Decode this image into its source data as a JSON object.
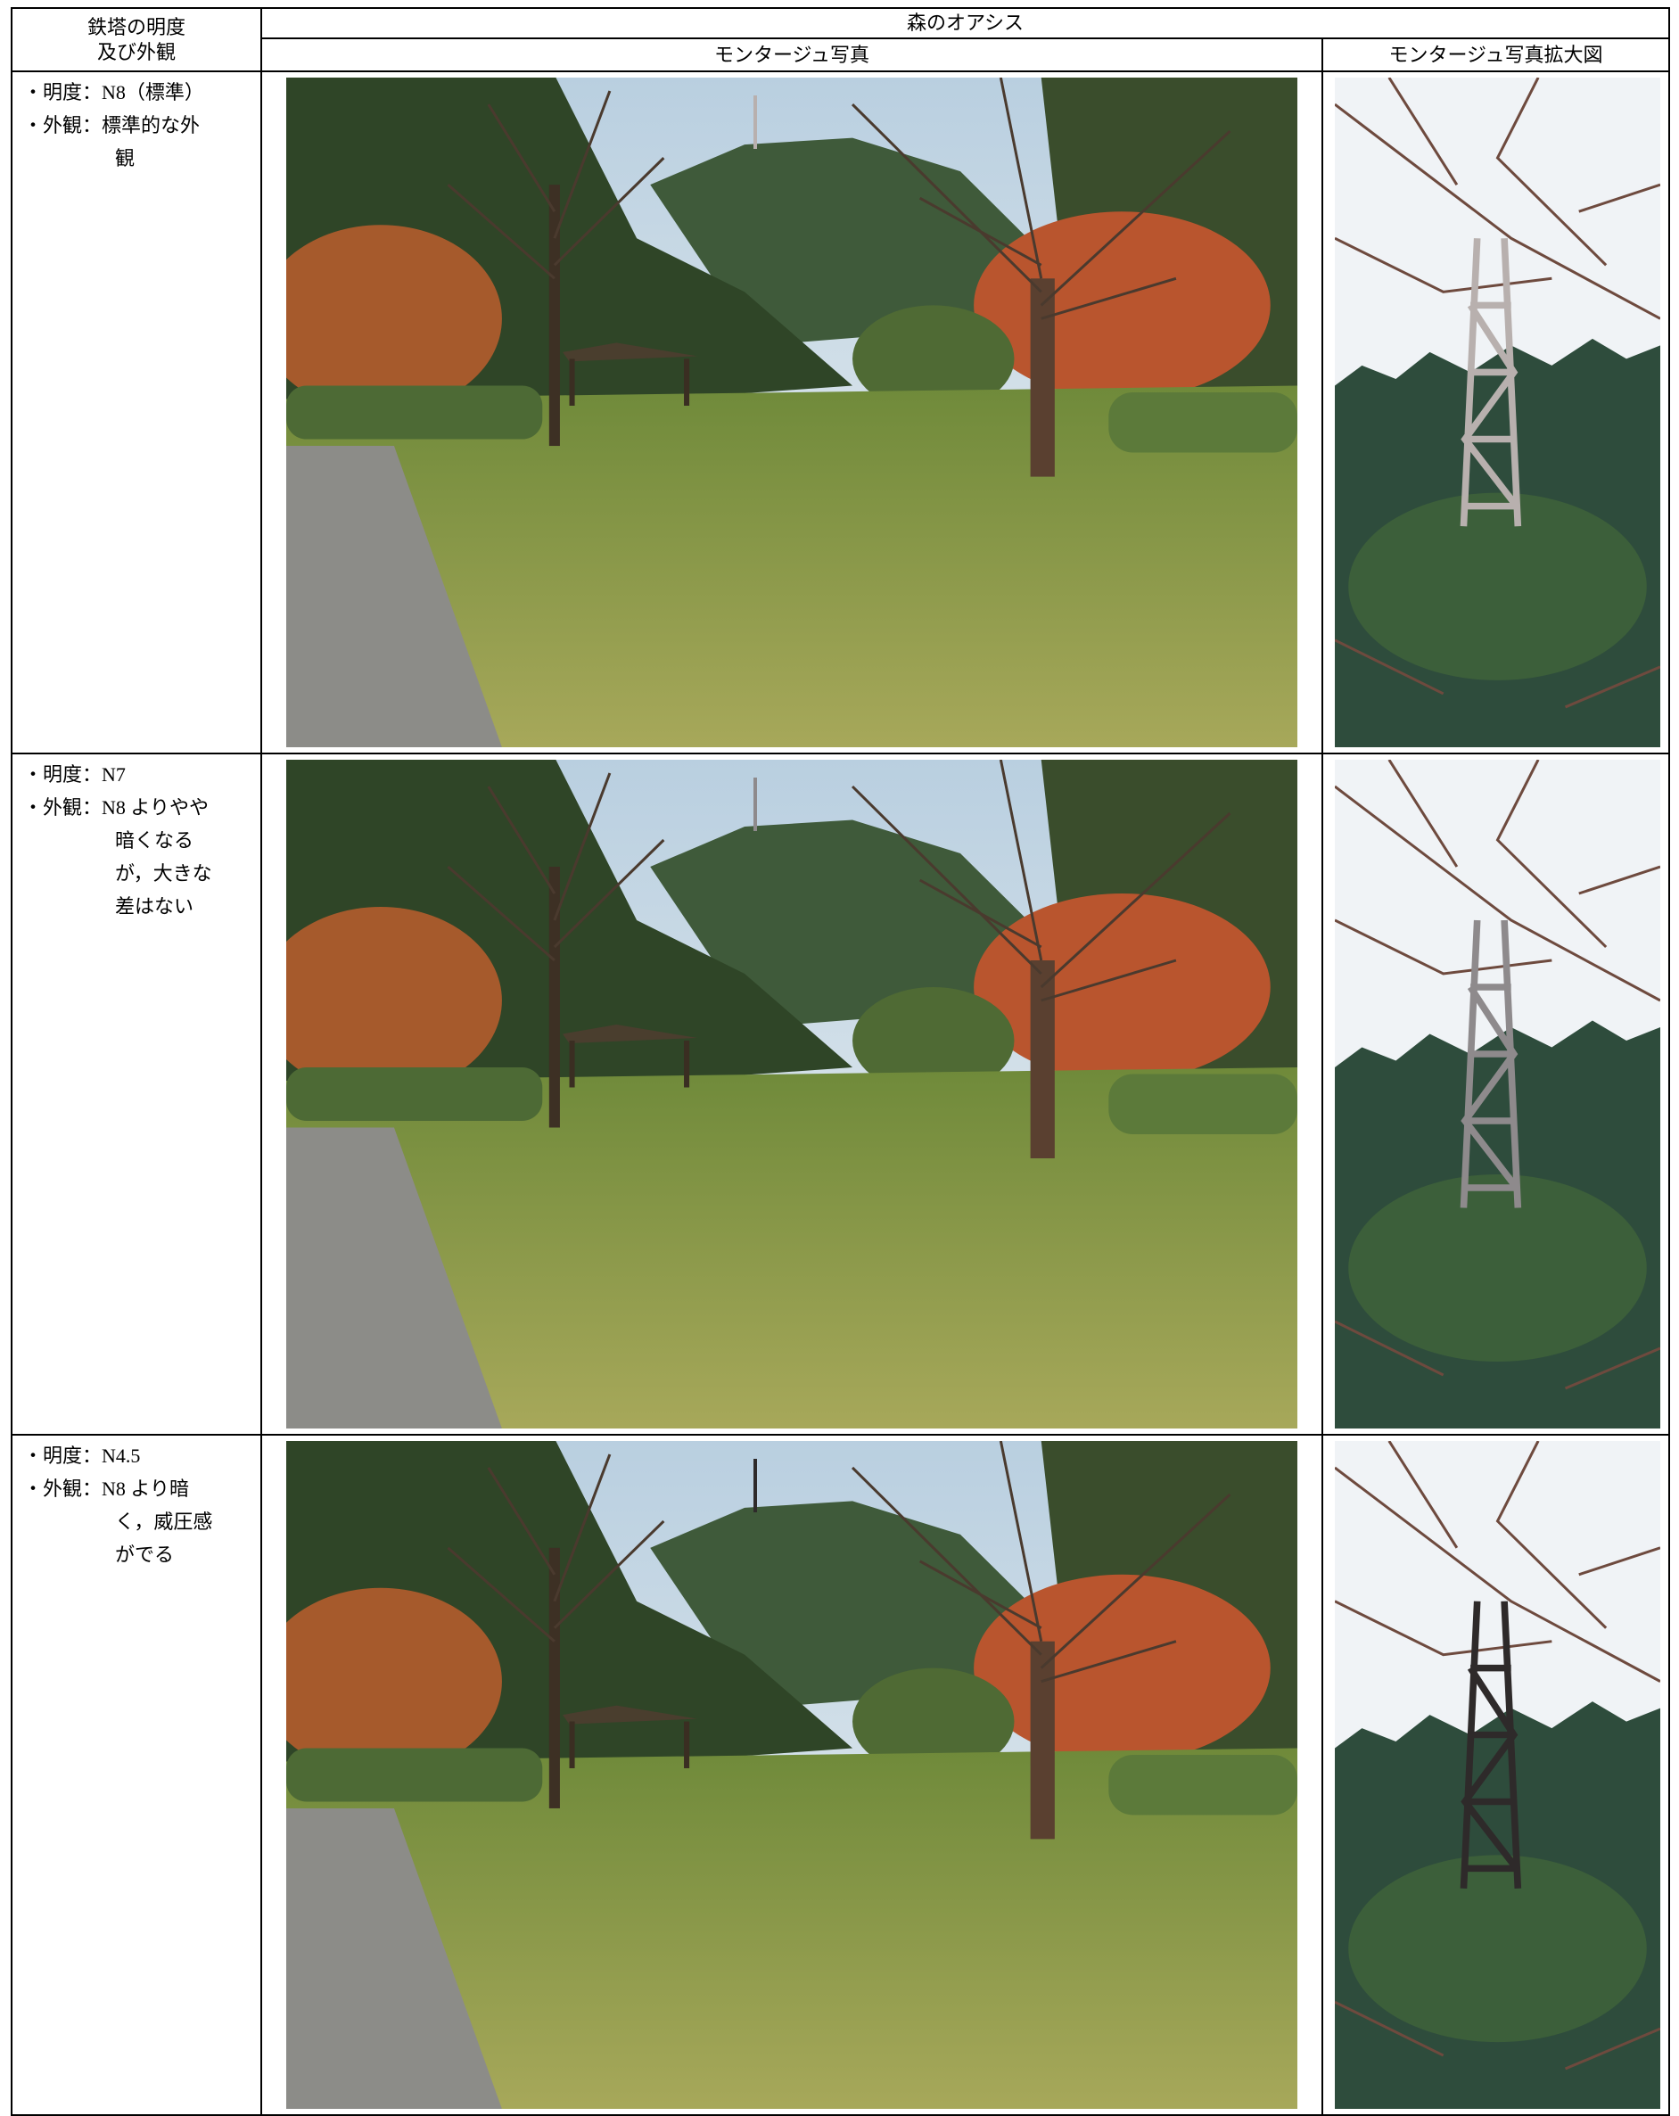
{
  "header": {
    "col1": [
      "鉄塔の明度",
      "及び外観"
    ],
    "location": "森のオアシス",
    "photo": "モンタージュ写真",
    "zoom": "モンタージュ写真拡大図"
  },
  "rows": [
    {
      "lines": [
        "・明度：N8（標準）",
        "・外観：標準的な外"
      ],
      "indent": [
        "観"
      ]
    },
    {
      "lines": [
        "・明度：N7",
        "・外観：N8 よりやや"
      ],
      "indent": [
        "暗くなる",
        "が，大きな",
        "差はない"
      ]
    },
    {
      "lines": [
        "・明度：N4.5",
        "・外観：N8 より暗"
      ],
      "indent": [
        "く，威圧感",
        "がでる"
      ]
    }
  ]
}
